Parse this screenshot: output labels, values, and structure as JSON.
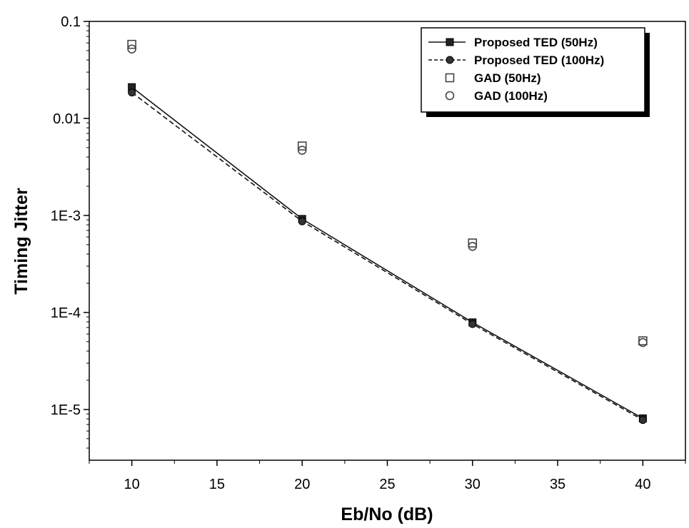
{
  "chart_data": {
    "type": "line",
    "xlabel": "Eb/No (dB)",
    "ylabel": "Timing Jitter",
    "xlim": [
      7.5,
      42.5
    ],
    "ylim": [
      3e-06,
      0.1
    ],
    "yscale": "log",
    "grid": false,
    "legend_position": "top-right",
    "x_ticks": [
      10,
      15,
      20,
      25,
      30,
      35,
      40
    ],
    "x_tick_labels": [
      "10",
      "15",
      "20",
      "25",
      "30",
      "35",
      "40"
    ],
    "y_ticks": [
      0.1,
      0.01,
      0.001,
      0.0001,
      1e-05
    ],
    "y_tick_labels": [
      "0.1",
      "0.01",
      "1E-3",
      "1E-4",
      "1E-5"
    ],
    "series": [
      {
        "name": "Proposed TED (50Hz)",
        "style": "solid",
        "marker": "filled-square",
        "x": [
          10,
          20,
          30,
          40
        ],
        "y": [
          0.021,
          0.00092,
          7.9e-05,
          8.1e-06
        ]
      },
      {
        "name": "Proposed TED (100Hz)",
        "style": "dashed",
        "marker": "filled-circle",
        "x": [
          10,
          20,
          30,
          40
        ],
        "y": [
          0.0185,
          0.00087,
          7.6e-05,
          7.8e-06
        ]
      },
      {
        "name": "GAD (50Hz)",
        "style": "none",
        "marker": "open-square",
        "x": [
          10,
          20,
          30,
          40
        ],
        "y": [
          0.058,
          0.0052,
          0.00052,
          5.1e-05
        ]
      },
      {
        "name": "GAD (100Hz)",
        "style": "none",
        "marker": "open-circle",
        "x": [
          10,
          20,
          30,
          40
        ],
        "y": [
          0.052,
          0.0047,
          0.00048,
          4.9e-05
        ]
      }
    ]
  }
}
